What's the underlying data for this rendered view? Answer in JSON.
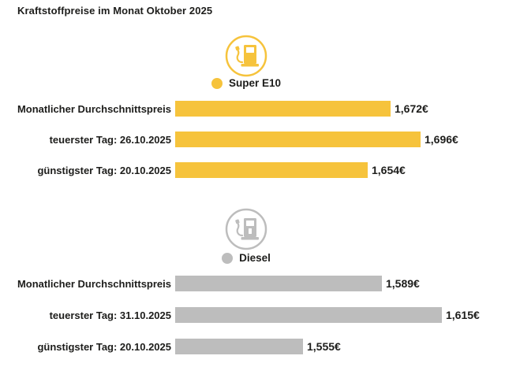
{
  "title": "Kraftstoffpreise im Monat Oktober 2025",
  "colors": {
    "super_e10": "#F6C33C",
    "diesel": "#BDBDBD",
    "text": "#1D1D1B",
    "background": "#FFFFFF"
  },
  "chart_data": [
    {
      "type": "bar",
      "orientation": "horizontal",
      "series_name": "Super E10",
      "icon": "fuel-pump-icon",
      "color": "#F6C33C",
      "categories": [
        "Monatlicher Durchschnittspreis",
        "teuerster Tag: 26.10.2025",
        "günstigster Tag: 20.10.2025"
      ],
      "values": [
        1.672,
        1.696,
        1.654
      ],
      "value_labels": [
        "1,672€",
        "1,696€",
        "1,654€"
      ],
      "unit": "€",
      "xmin": 1.5,
      "grid": false,
      "legend_position": "top-center"
    },
    {
      "type": "bar",
      "orientation": "horizontal",
      "series_name": "Diesel",
      "icon": "fuel-pump-icon",
      "color": "#BDBDBD",
      "categories": [
        "Monatlicher Durchschnittspreis",
        "teuerster Tag: 31.10.2025",
        "günstigster Tag: 20.10.2025"
      ],
      "values": [
        1.589,
        1.615,
        1.555
      ],
      "value_labels": [
        "1,589€",
        "1,615€",
        "1,555€"
      ],
      "unit": "€",
      "xmin": 1.5,
      "grid": false,
      "legend_position": "top-center"
    }
  ]
}
